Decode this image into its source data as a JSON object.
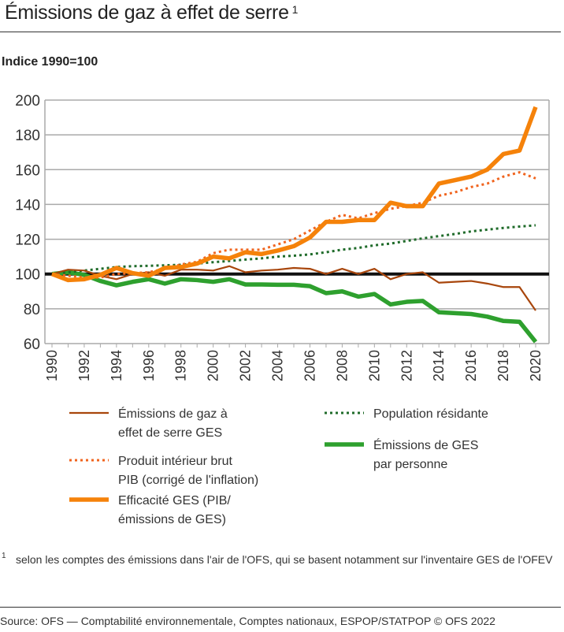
{
  "title": "Émissions de gaz à effet de serre",
  "title_note": "1",
  "subtitle": "Indice 1990=100",
  "chart_data": {
    "type": "line",
    "ylim": [
      60,
      200
    ],
    "yticks": [
      60,
      80,
      100,
      120,
      140,
      160,
      180,
      200
    ],
    "xticks": [
      1990,
      1992,
      1994,
      1996,
      1998,
      2000,
      2002,
      2004,
      2006,
      2008,
      2010,
      2012,
      2014,
      2016,
      2018,
      2020
    ],
    "grid": true,
    "reference_line": 100,
    "legend_placement": "bottom",
    "x": [
      1990,
      1991,
      1992,
      1993,
      1994,
      1995,
      1996,
      1997,
      1998,
      1999,
      2000,
      2001,
      2002,
      2003,
      2004,
      2005,
      2006,
      2007,
      2008,
      2009,
      2010,
      2011,
      2012,
      2013,
      2014,
      2015,
      2016,
      2017,
      2018,
      2019,
      2020
    ],
    "series": [
      {
        "name": "Émissions de gaz à effet de serre GES",
        "name_lines": [
          "Émissions de gaz à",
          "effet de serre GES"
        ],
        "color": "#a8460c",
        "style": "solid-thin",
        "values": [
          100,
          102.5,
          102,
          99,
          97,
          100,
          101,
          99,
          102.5,
          102.5,
          102,
          104.5,
          101,
          102,
          102.5,
          103.5,
          103,
          100,
          103,
          100,
          103,
          97,
          100,
          101,
          95,
          95.5,
          96,
          94.5,
          92.5,
          92.5,
          79
        ]
      },
      {
        "name": "Produit intérieur brut PIB (corrigé de l'inflation)",
        "name_lines": [
          "Produit intérieur brut",
          "PIB (corrigé de l'inflation)"
        ],
        "color": "#f0641e",
        "style": "dotted",
        "values": [
          100,
          99,
          98,
          98,
          100,
          100.5,
          101,
          103,
          105.5,
          107,
          112,
          114,
          114,
          114,
          117,
          120,
          125,
          130,
          134,
          132,
          135,
          137.5,
          139,
          141,
          145,
          147,
          150,
          152,
          156,
          158.5,
          155
        ]
      },
      {
        "name": "Efficacité GES (PIB/émissions de GES)",
        "name_lines": [
          "Efficacité GES (PIB/",
          "émissions de GES)"
        ],
        "color": "#f5820a",
        "style": "solid-thick",
        "values": [
          100,
          96.5,
          97,
          99.5,
          103.5,
          100.5,
          99,
          103.5,
          104,
          106,
          110,
          109,
          112.5,
          111.5,
          113.5,
          116,
          121,
          130,
          130,
          131,
          131,
          141,
          139,
          139,
          152,
          154,
          156,
          160,
          169,
          171,
          196
        ]
      },
      {
        "name": "Population résidante",
        "name_lines": [
          "Population résidante"
        ],
        "color": "#1f6b2a",
        "style": "dotted",
        "values": [
          100,
          101,
          102,
          103,
          104,
          104.5,
          104.7,
          105,
          105.3,
          106,
          106.8,
          107.5,
          108.3,
          109,
          110,
          110.5,
          111.3,
          112.5,
          114,
          115,
          116.5,
          117.5,
          119,
          120.5,
          121.8,
          123,
          124.5,
          125.5,
          126.5,
          127.3,
          128
        ]
      },
      {
        "name": "Émissions de GES par personne",
        "name_lines": [
          "Émissions de GES",
          "par personne"
        ],
        "color": "#2ea02e",
        "style": "solid-thick",
        "values": [
          100,
          101,
          99.5,
          96,
          93.5,
          95.5,
          97,
          94.5,
          97,
          96.5,
          95.5,
          97,
          94,
          94,
          93.8,
          93.8,
          93,
          89,
          90,
          87,
          88.5,
          82.5,
          84,
          84.5,
          78,
          77.5,
          77,
          75.5,
          73,
          72.5,
          61
        ]
      }
    ]
  },
  "footnote": {
    "mark": "1",
    "text": "selon les comptes des émissions dans l'air de l'OFS, qui se basent notamment sur l'inventaire GES de l'OFEV"
  },
  "source": "Source: OFS — Comptabilité environnementale, Comptes nationaux,  ESPOP/STATPOP  © OFS 2022"
}
